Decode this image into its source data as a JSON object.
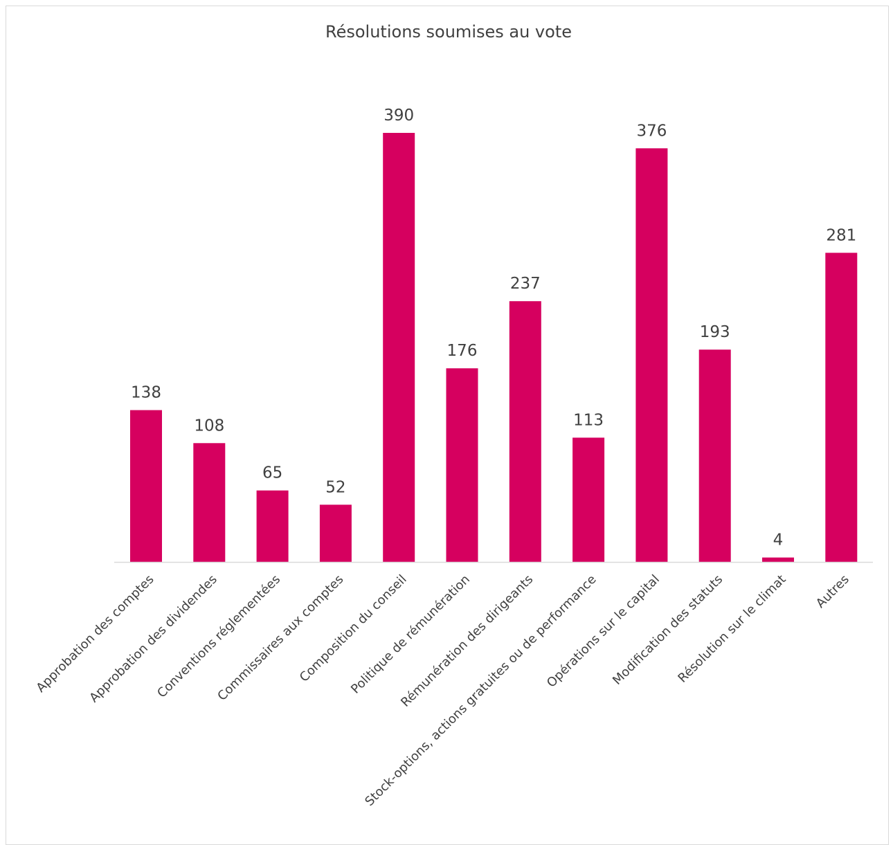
{
  "chart_data": {
    "type": "bar",
    "title": "Résolutions soumises au vote",
    "xlabel": "",
    "ylabel": "",
    "categories": [
      "Approbation des comptes",
      "Approbation des dividendes",
      "Conventions réglementées",
      "Commissaires aux comptes",
      "Composition du conseil",
      "Politique de rémunération",
      "Rémunération des dirigeants",
      "Stock-options, actions gratuites ou de performance",
      "Opérations sur le capital",
      "Modification des statuts",
      "Résolution sur le climat",
      "Autres"
    ],
    "values": [
      138,
      108,
      65,
      52,
      390,
      176,
      237,
      113,
      376,
      193,
      4,
      281
    ],
    "ylim": [
      0,
      390
    ],
    "grid": false,
    "legend": "none",
    "data_labels": true,
    "colors": {
      "bar": "#d6005f",
      "axis": "#d9d9d9",
      "text": "#404040"
    }
  }
}
